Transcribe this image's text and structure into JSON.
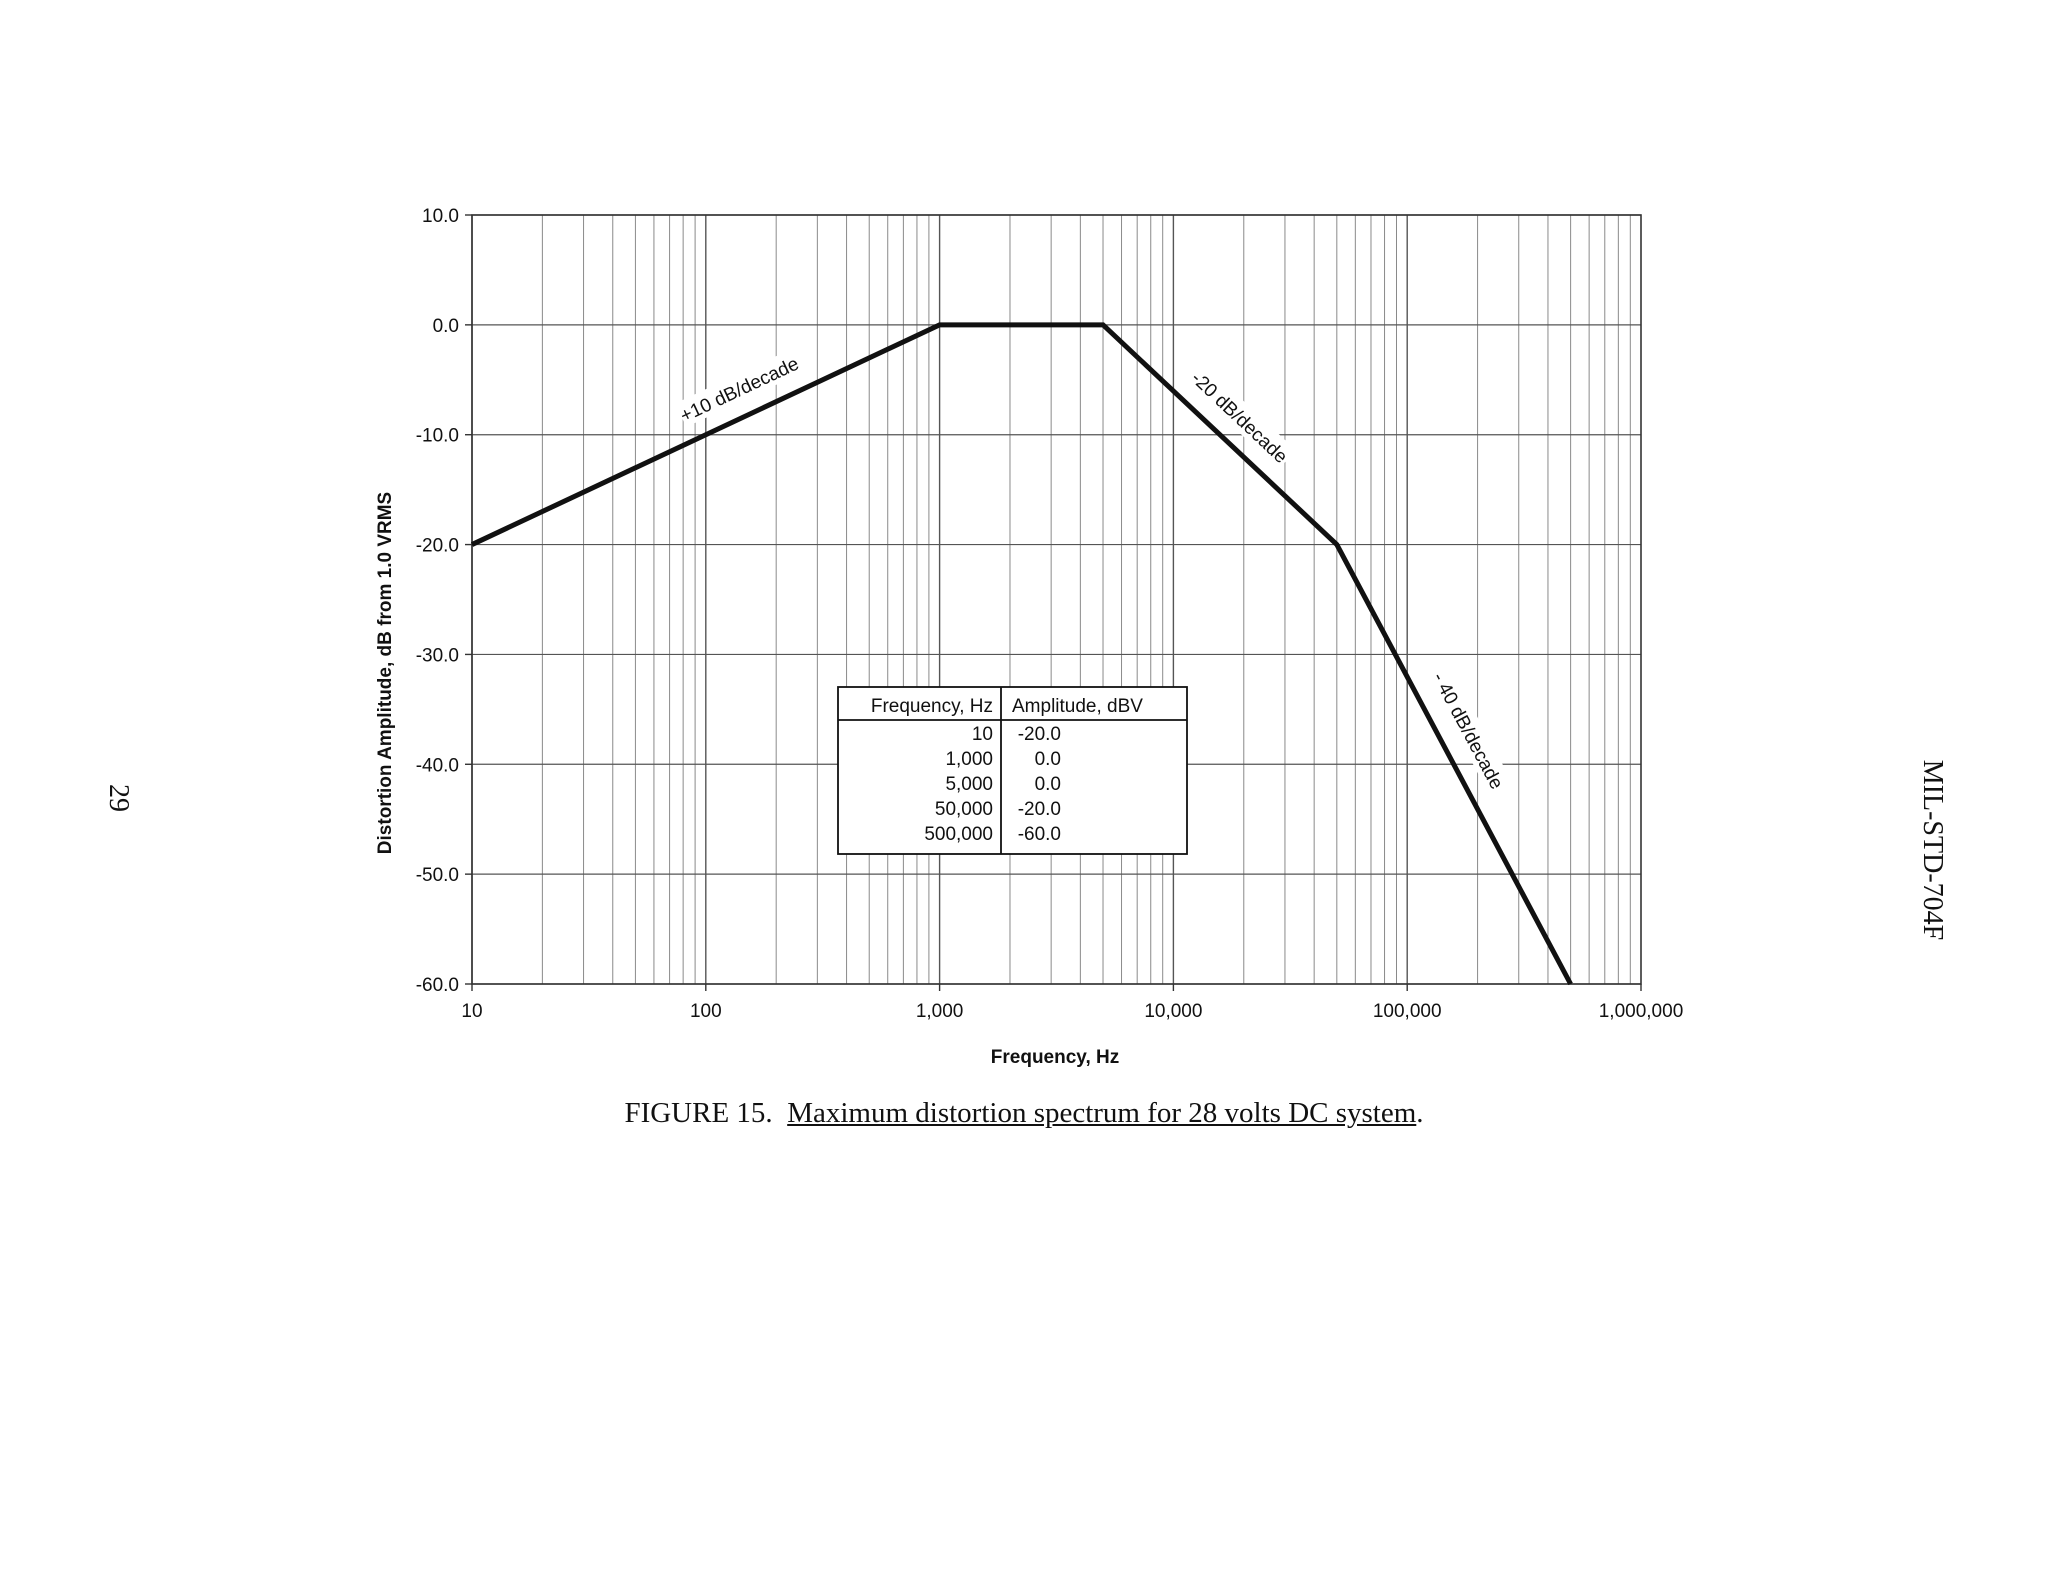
{
  "page": {
    "page_number": "29",
    "document_id": "MIL-STD-704F"
  },
  "caption": {
    "prefix": "FIGURE 15.",
    "title": "Maximum distortion spectrum for 28 volts DC system",
    "suffix": "."
  },
  "chart_data": {
    "type": "line",
    "title": "",
    "xlabel": "Frequency, Hz",
    "ylabel": "Distortion Amplitude, dB from 1.0 VRMS",
    "xscale": "log",
    "xlim": [
      10,
      1000000
    ],
    "ylim": [
      -60,
      10
    ],
    "grid": true,
    "x_tick_labels": [
      "10",
      "100",
      "1,000",
      "10,000",
      "100,000",
      "1,000,000"
    ],
    "y_tick_labels": [
      "10.0",
      "0.0",
      "-10.0",
      "-20.0",
      "-30.0",
      "-40.0",
      "-50.0",
      "-60.0"
    ],
    "series": [
      {
        "x": [
          10,
          1000,
          5000,
          50000,
          500000
        ],
        "y": [
          -20.0,
          0.0,
          0.0,
          -20.0,
          -60.0
        ],
        "color": "#111111"
      }
    ],
    "annotations": [
      {
        "text": "+10 dB/decade",
        "x": 140,
        "y": -6
      },
      {
        "text": "-20 dB/decade",
        "x": 19000,
        "y": -8.5
      },
      {
        "text": "- 40 dB/decade",
        "x": 180000,
        "y": -37
      }
    ],
    "table": {
      "headers": [
        "Frequency, Hz",
        "Amplitude, dBV"
      ],
      "rows": [
        [
          "10",
          "-20.0"
        ],
        [
          "1,000",
          "0.0"
        ],
        [
          "5,000",
          "0.0"
        ],
        [
          "50,000",
          "-20.0"
        ],
        [
          "500,000",
          "-60.0"
        ]
      ]
    }
  }
}
